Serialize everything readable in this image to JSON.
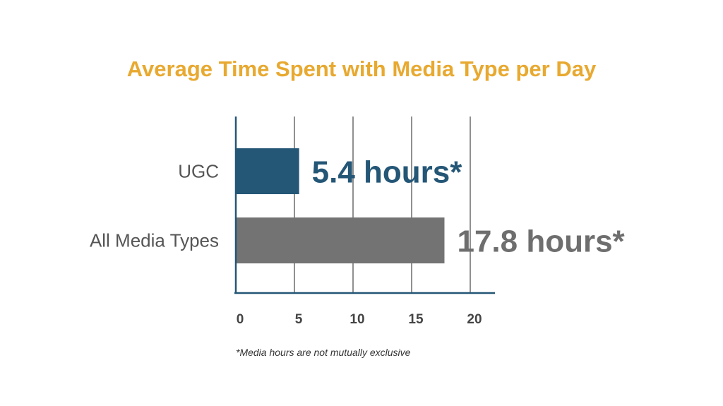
{
  "chart_data": {
    "type": "bar",
    "orientation": "horizontal",
    "title": "Average Time Spent with Media Type per Day",
    "categories": [
      "UGC",
      "All Media Types"
    ],
    "values": [
      5.4,
      17.8
    ],
    "data_labels": [
      "5.4 hours*",
      "17.8 hours*"
    ],
    "colors": [
      "#245676",
      "#737373"
    ],
    "label_colors": [
      "#245676",
      "#6e6e6e"
    ],
    "xticks": [
      "0",
      "5",
      "10",
      "15",
      "20"
    ],
    "tick_values": [
      0,
      5,
      10,
      15,
      20
    ],
    "xlim": [
      0,
      22
    ],
    "xlabel": "",
    "ylabel": "",
    "grid": true,
    "footnote": "*Media hours are not mutually exclusive",
    "title_color": "#E8A930",
    "axis_color": "#245676"
  }
}
